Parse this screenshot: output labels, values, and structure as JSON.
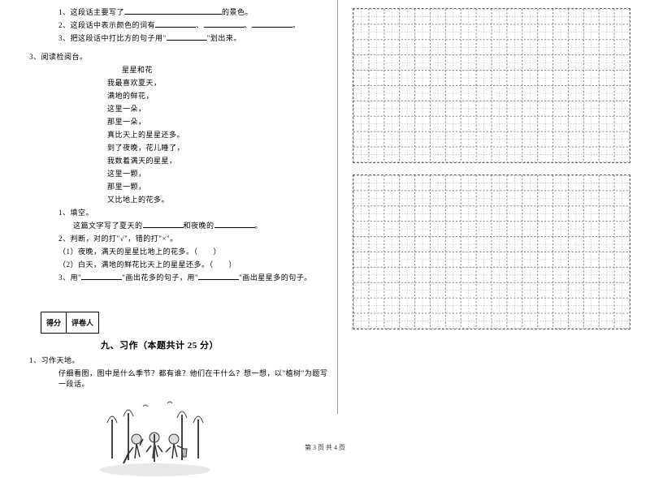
{
  "left": {
    "q1_l1_pre": "1、这段话主要写了",
    "q1_l1_post": "的景色。",
    "q1_l2_pre": "2、这段话中表示颜色的词有",
    "q1_l2_sep1": "、",
    "q1_l2_sep2": "、",
    "q1_l2_end": "。",
    "q1_l3_pre": "3、把这段话中打比方的句子用\"",
    "q1_l3_post": "\"划出来。",
    "q3_head": "3、阅读检阅台。",
    "poem_title": "星星和花",
    "poem_l1": "我最喜欢夏天，",
    "poem_l2": "满地的鲜花，",
    "poem_l3": "这里一朵，",
    "poem_l4": "那里一朵，",
    "poem_l5": "真比天上的星星还多。",
    "poem_l6": "到了夜晚，花儿睡了，",
    "poem_l7": "我数着满天的星星，",
    "poem_l8": "这里一颗，",
    "poem_l9": "那里一颗，",
    "poem_l10": "又比地上的花多。",
    "sub1_head": "1、填空。",
    "sub1_l1_a": "这篇文字写了夏天的",
    "sub1_l1_b": "和夜晚的",
    "sub1_l1_c": "。",
    "sub2_head": "2、判断，对的打\"√\"，错的打\"×\"。",
    "sub2_l1": "（1）夜晚，满天的星星比地上的花多。（　　）",
    "sub2_l2": "（2）白天，满地的鲜花比天上的星星还多。（　　）",
    "sub3_pre": "3、用\"",
    "sub3_mid": "\"画出花多的句子，用\"",
    "sub3_post": "\"画出星星多的句子。",
    "score_l": "得分",
    "score_r": "评卷人",
    "section9": "九、习作（本题共计 25 分）",
    "w1_head": "1、习作天地。",
    "w1_body": "仔细看图，图中是什么季节？都有谁？他们在干什么？想一想，以\"植树\"为题写一段话。"
  },
  "grid": {
    "rows": 10,
    "cols": 18,
    "cell": 18,
    "stroke": "#888888",
    "dash": "2,2"
  },
  "footer": "第 3 页  共 4 页"
}
